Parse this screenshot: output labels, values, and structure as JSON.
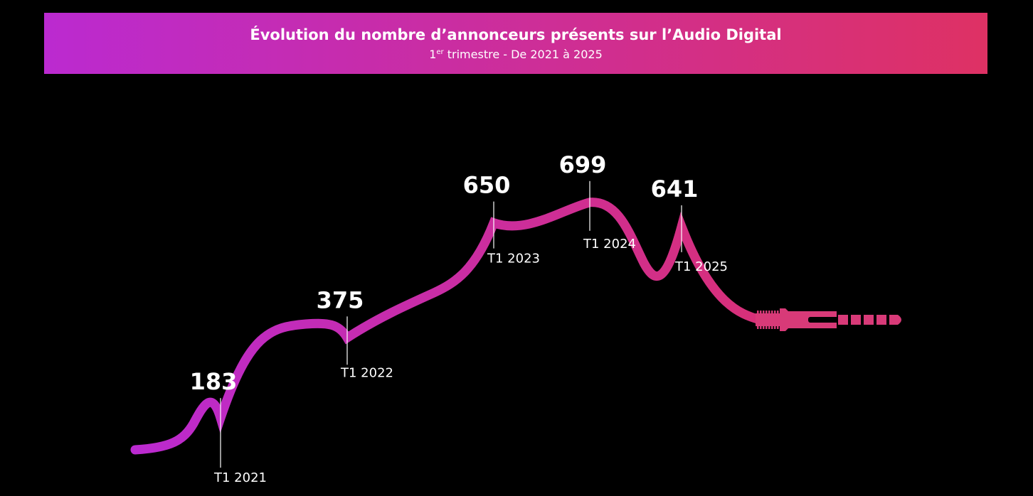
{
  "header": {
    "title": "Évolution du nombre d’annonceurs présents sur l’Audio Digital",
    "subtitle_sup_prefix": "1",
    "subtitle_sup": "er",
    "subtitle_rest": " trimestre - De 2021 à 2025"
  },
  "colors": {
    "gradient_start": "#bb2ad0",
    "gradient_end": "#de3164",
    "background": "#000000",
    "text": "#ffffff"
  },
  "chart_data": {
    "type": "line",
    "categories": [
      "T1 2021",
      "T1 2022",
      "T1 2023",
      "T1 2024",
      "T1 2025"
    ],
    "values": [
      183,
      375,
      650,
      699,
      641
    ],
    "title": "Évolution du nombre d’annonceurs présents sur l’Audio Digital",
    "xlabel": "",
    "ylabel": "",
    "grid": false,
    "style": "audio cable ending in a jack plug"
  }
}
